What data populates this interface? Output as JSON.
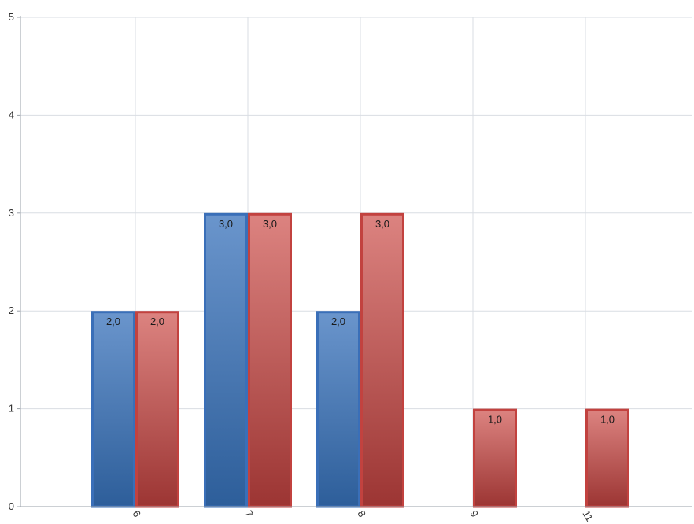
{
  "chart_data": {
    "type": "bar",
    "categories": [
      "6",
      "7",
      "8",
      "9",
      "11"
    ],
    "series": [
      {
        "values": [
          2.0,
          3.0,
          2.0,
          0,
          0
        ],
        "labels": [
          "2,0",
          "3,0",
          "2,0",
          "",
          ""
        ]
      },
      {
        "values": [
          2.0,
          3.0,
          3.0,
          1.0,
          1.0
        ],
        "labels": [
          "2,0",
          "3,0",
          "3,0",
          "1,0",
          "1,0"
        ]
      }
    ],
    "ylim": [
      0,
      5
    ],
    "yticks": [
      "0",
      "1",
      "2",
      "3",
      "4",
      "5"
    ],
    "grid": true,
    "colors": {
      "blue_top": "#6a95cc",
      "blue_bottom": "#2d5e9a",
      "blue_border": "#3a6fb8",
      "red_top": "#dc8380",
      "red_bottom": "#9c3533",
      "red_border": "#c2423f"
    }
  }
}
